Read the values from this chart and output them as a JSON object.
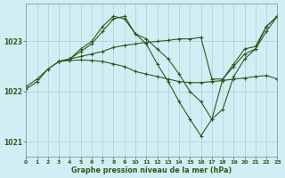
{
  "title": "Graphe pression niveau de la mer (hPa)",
  "background_color": "#d1eef5",
  "grid_color": "#b0d4dc",
  "line_color": "#2d5a1b",
  "xlim": [
    0,
    23
  ],
  "ylim": [
    1020.7,
    1023.75
  ],
  "yticks": [
    1021,
    1022,
    1023
  ],
  "xticks": [
    0,
    1,
    2,
    3,
    4,
    5,
    6,
    7,
    8,
    9,
    10,
    11,
    12,
    13,
    14,
    15,
    16,
    17,
    18,
    19,
    20,
    21,
    22,
    23
  ],
  "series": [
    {
      "x": [
        0,
        1,
        2,
        3,
        4,
        5,
        6,
        7,
        8,
        9,
        10,
        11,
        12,
        13,
        14,
        15,
        16,
        17,
        18,
        19,
        20,
        21,
        22,
        23
      ],
      "y": [
        1022.1,
        1022.25,
        1022.45,
        1022.6,
        1022.62,
        1022.63,
        1022.62,
        1022.6,
        1022.55,
        1022.5,
        1022.4,
        1022.35,
        1022.3,
        1022.25,
        1022.2,
        1022.18,
        1022.18,
        1022.2,
        1022.22,
        1022.25,
        1022.27,
        1022.3,
        1022.32,
        1022.25
      ]
    },
    {
      "x": [
        0,
        1,
        2,
        3,
        4,
        5,
        6,
        7,
        8,
        9,
        10,
        11,
        12,
        13,
        14,
        15,
        16,
        17,
        18,
        19,
        20,
        21,
        22,
        23
      ],
      "y": [
        1022.05,
        1022.2,
        1022.45,
        1022.6,
        1022.65,
        1022.8,
        1022.95,
        1023.2,
        1023.45,
        1023.5,
        1023.15,
        1022.95,
        1022.55,
        1022.2,
        1021.8,
        1021.45,
        1021.12,
        1021.45,
        1022.25,
        1022.5,
        1022.75,
        1022.85,
        1023.2,
        1023.5
      ]
    },
    {
      "x": [
        3,
        4,
        5,
        6,
        7,
        8,
        9,
        10,
        11,
        12,
        13,
        14,
        15,
        16,
        17,
        18,
        19,
        20,
        21,
        22,
        23
      ],
      "y": [
        1022.6,
        1022.65,
        1022.85,
        1023.0,
        1023.3,
        1023.5,
        1023.45,
        1023.15,
        1023.05,
        1022.85,
        1022.65,
        1022.35,
        1022.0,
        1021.8,
        1021.45,
        1021.65,
        1022.3,
        1022.65,
        1022.85,
        1023.3,
        1023.5
      ]
    },
    {
      "x": [
        3,
        4,
        5,
        6,
        7,
        8,
        9,
        10,
        11,
        12,
        13,
        14,
        15,
        16,
        17,
        18,
        19,
        20,
        21,
        22,
        23
      ],
      "y": [
        1022.6,
        1022.65,
        1022.7,
        1022.75,
        1022.8,
        1022.88,
        1022.92,
        1022.95,
        1022.98,
        1023.0,
        1023.02,
        1023.05,
        1023.05,
        1023.08,
        1022.25,
        1022.25,
        1022.55,
        1022.85,
        1022.9,
        1023.3,
        1023.5
      ]
    }
  ]
}
